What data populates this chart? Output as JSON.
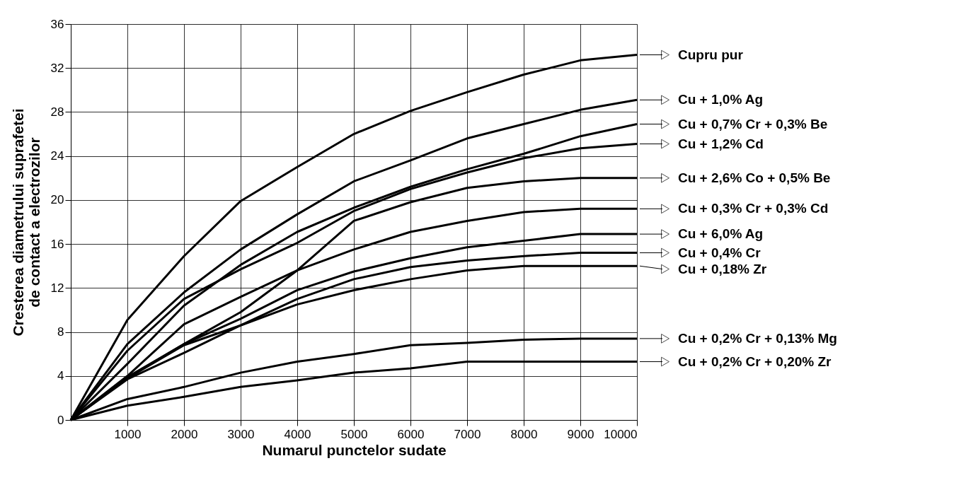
{
  "chart_data": {
    "type": "line",
    "xlabel": "Numarul punctelor sudate",
    "ylabel": "Cresterea diametrului suprafetei de contact a electrozilor",
    "x": [
      0,
      1000,
      2000,
      3000,
      4000,
      5000,
      6000,
      7000,
      8000,
      9000,
      10000
    ],
    "xlim": [
      0,
      10000
    ],
    "xticks": [
      1000,
      2000,
      3000,
      4000,
      5000,
      6000,
      7000,
      8000,
      9000,
      10000
    ],
    "ylim": [
      0,
      36
    ],
    "yticks": [
      0,
      4,
      8,
      12,
      16,
      20,
      24,
      28,
      32,
      36
    ],
    "grid": true,
    "legend": "right",
    "line_style": "solid",
    "marker": "none",
    "series": [
      {
        "name": "Cupru pur",
        "color": "#000000",
        "values": [
          0,
          9.1,
          14.9,
          19.9,
          23.0,
          26.0,
          28.1,
          29.8,
          31.4,
          32.7,
          33.2
        ]
      },
      {
        "name": "Cu + 1,0% Ag",
        "color": "#000000",
        "values": [
          0,
          6.9,
          11.6,
          15.5,
          18.7,
          21.7,
          23.6,
          25.6,
          26.9,
          28.2,
          29.1
        ]
      },
      {
        "name": "Cu + 0,7% Cr + 0,3% Be",
        "color": "#000000",
        "values": [
          0,
          5.1,
          10.4,
          14.1,
          17.1,
          19.3,
          21.2,
          22.8,
          24.2,
          25.8,
          26.9
        ]
      },
      {
        "name": "Cu + 1,2% Cd",
        "color": "#000000",
        "values": [
          0,
          6.3,
          11.0,
          13.7,
          16.1,
          19.0,
          21.0,
          22.5,
          23.8,
          24.7,
          25.1
        ]
      },
      {
        "name": "Cu + 2,6% Co + 0,5% Be",
        "color": "#000000",
        "values": [
          0,
          4.0,
          8.7,
          11.2,
          13.6,
          18.1,
          19.8,
          21.1,
          21.7,
          22.0,
          22.0
        ]
      },
      {
        "name": "Cu + 0,3% Cr + 0,3% Cd",
        "color": "#000000",
        "values": [
          0,
          3.9,
          6.9,
          9.8,
          13.6,
          15.5,
          17.1,
          18.1,
          18.9,
          19.2,
          19.2
        ]
      },
      {
        "name": "Cu + 6,0% Ag",
        "color": "#000000",
        "values": [
          0,
          3.8,
          6.9,
          9.2,
          11.8,
          13.5,
          14.7,
          15.7,
          16.3,
          16.9,
          16.9
        ]
      },
      {
        "name": "Cu + 0,4% Cr",
        "color": "#000000",
        "values": [
          0,
          3.8,
          6.8,
          8.6,
          11.0,
          12.8,
          13.9,
          14.5,
          14.9,
          15.2,
          15.2
        ]
      },
      {
        "name": "Cu + 0,18% Zr",
        "color": "#000000",
        "values": [
          0,
          3.7,
          6.1,
          8.6,
          10.5,
          11.8,
          12.8,
          13.6,
          14.0,
          14.0,
          14.0
        ]
      },
      {
        "name": "Cu + 0,2% Cr + 0,13% Mg",
        "color": "#000000",
        "values": [
          0,
          1.9,
          3.0,
          4.3,
          5.3,
          6.0,
          6.8,
          7.0,
          7.3,
          7.4,
          7.4
        ]
      },
      {
        "name": "Cu + 0,2% Cr + 0,20% Zr",
        "color": "#000000",
        "values": [
          0,
          1.3,
          2.1,
          3.0,
          3.6,
          4.3,
          4.7,
          5.3,
          5.3,
          5.3,
          5.3
        ]
      }
    ]
  }
}
